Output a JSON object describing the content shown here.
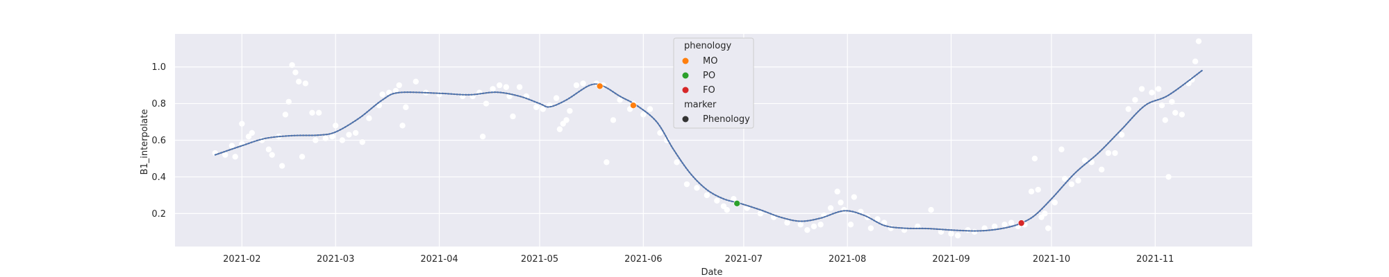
{
  "chart_data": {
    "type": "scatter",
    "title": "",
    "xlabel": "Date",
    "ylabel": "B1_interpolate",
    "x_ticks": [
      "2021-02",
      "2021-03",
      "2021-04",
      "2021-05",
      "2021-06",
      "2021-07",
      "2021-08",
      "2021-09",
      "2021-10",
      "2021-11"
    ],
    "y_ticks": [
      "0.2",
      "0.4",
      "0.6",
      "0.8",
      "1.0"
    ],
    "xlim": [
      "2021-01-12",
      "2021-11-30"
    ],
    "ylim": [
      0.02,
      1.18
    ],
    "grid": true,
    "background": "#eaeaf2",
    "series": [
      {
        "kind": "raw",
        "color": "#ffffff",
        "points": [
          [
            "2021-01-24",
            0.53
          ],
          [
            "2021-01-27",
            0.52
          ],
          [
            "2021-01-29",
            0.57
          ],
          [
            "2021-01-30",
            0.51
          ],
          [
            "2021-02-01",
            0.58
          ],
          [
            "2021-02-01",
            0.69
          ],
          [
            "2021-02-03",
            0.62
          ],
          [
            "2021-02-04",
            0.64
          ],
          [
            "2021-02-07",
            0.6
          ],
          [
            "2021-02-09",
            0.55
          ],
          [
            "2021-02-10",
            0.52
          ],
          [
            "2021-02-12",
            0.62
          ],
          [
            "2021-02-13",
            0.46
          ],
          [
            "2021-02-14",
            0.74
          ],
          [
            "2021-02-15",
            0.81
          ],
          [
            "2021-02-16",
            1.01
          ],
          [
            "2021-02-17",
            0.97
          ],
          [
            "2021-02-18",
            0.92
          ],
          [
            "2021-02-19",
            0.51
          ],
          [
            "2021-02-20",
            0.91
          ],
          [
            "2021-02-22",
            0.75
          ],
          [
            "2021-02-24",
            0.75
          ],
          [
            "2021-02-23",
            0.6
          ],
          [
            "2021-02-26",
            0.61
          ],
          [
            "2021-02-28",
            0.62
          ],
          [
            "2021-03-01",
            0.68
          ],
          [
            "2021-03-03",
            0.6
          ],
          [
            "2021-03-05",
            0.63
          ],
          [
            "2021-03-07",
            0.64
          ],
          [
            "2021-03-09",
            0.59
          ],
          [
            "2021-03-11",
            0.72
          ],
          [
            "2021-03-14",
            0.79
          ],
          [
            "2021-03-15",
            0.85
          ],
          [
            "2021-03-17",
            0.86
          ],
          [
            "2021-03-19",
            0.87
          ],
          [
            "2021-03-20",
            0.9
          ],
          [
            "2021-03-21",
            0.68
          ],
          [
            "2021-03-22",
            0.78
          ],
          [
            "2021-03-25",
            0.92
          ],
          [
            "2021-03-28",
            0.86
          ],
          [
            "2021-04-01",
            0.85
          ],
          [
            "2021-04-08",
            0.84
          ],
          [
            "2021-04-11",
            0.84
          ],
          [
            "2021-04-13",
            0.86
          ],
          [
            "2021-04-14",
            0.62
          ],
          [
            "2021-04-15",
            0.8
          ],
          [
            "2021-04-17",
            0.88
          ],
          [
            "2021-04-19",
            0.9
          ],
          [
            "2021-04-21",
            0.89
          ],
          [
            "2021-04-22",
            0.84
          ],
          [
            "2021-04-23",
            0.73
          ],
          [
            "2021-04-25",
            0.89
          ],
          [
            "2021-04-27",
            0.84
          ],
          [
            "2021-04-30",
            0.78
          ],
          [
            "2021-05-02",
            0.77
          ],
          [
            "2021-05-04",
            0.79
          ],
          [
            "2021-05-06",
            0.83
          ],
          [
            "2021-05-07",
            0.66
          ],
          [
            "2021-05-08",
            0.69
          ],
          [
            "2021-05-09",
            0.71
          ],
          [
            "2021-05-10",
            0.76
          ],
          [
            "2021-05-12",
            0.9
          ],
          [
            "2021-05-14",
            0.91
          ],
          [
            "2021-05-18",
            0.91
          ],
          [
            "2021-05-20",
            0.9
          ],
          [
            "2021-05-21",
            0.48
          ],
          [
            "2021-05-23",
            0.71
          ],
          [
            "2021-05-25",
            0.82
          ],
          [
            "2021-05-28",
            0.77
          ],
          [
            "2021-05-29",
            0.8
          ],
          [
            "2021-06-01",
            0.74
          ],
          [
            "2021-06-03",
            0.77
          ],
          [
            "2021-06-06",
            0.64
          ],
          [
            "2021-06-08",
            0.6
          ],
          [
            "2021-06-11",
            0.48
          ],
          [
            "2021-06-14",
            0.36
          ],
          [
            "2021-06-17",
            0.34
          ],
          [
            "2021-06-20",
            0.3
          ],
          [
            "2021-06-23",
            0.27
          ],
          [
            "2021-06-25",
            0.24
          ],
          [
            "2021-06-26",
            0.22
          ],
          [
            "2021-06-28",
            0.28
          ],
          [
            "2021-07-02",
            0.23
          ],
          [
            "2021-07-06",
            0.2
          ],
          [
            "2021-07-10",
            0.18
          ],
          [
            "2021-07-14",
            0.15
          ],
          [
            "2021-07-18",
            0.14
          ],
          [
            "2021-07-20",
            0.11
          ],
          [
            "2021-07-22",
            0.13
          ],
          [
            "2021-07-24",
            0.14
          ],
          [
            "2021-07-25",
            0.19
          ],
          [
            "2021-07-27",
            0.23
          ],
          [
            "2021-07-29",
            0.32
          ],
          [
            "2021-07-30",
            0.26
          ],
          [
            "2021-07-31",
            0.22
          ],
          [
            "2021-08-02",
            0.14
          ],
          [
            "2021-08-03",
            0.29
          ],
          [
            "2021-08-05",
            0.21
          ],
          [
            "2021-08-07",
            0.18
          ],
          [
            "2021-08-08",
            0.12
          ],
          [
            "2021-08-10",
            0.17
          ],
          [
            "2021-08-12",
            0.15
          ],
          [
            "2021-08-14",
            0.12
          ],
          [
            "2021-08-18",
            0.11
          ],
          [
            "2021-08-22",
            0.13
          ],
          [
            "2021-08-26",
            0.22
          ],
          [
            "2021-08-29",
            0.1
          ],
          [
            "2021-09-01",
            0.09
          ],
          [
            "2021-09-03",
            0.08
          ],
          [
            "2021-09-06",
            0.11
          ],
          [
            "2021-09-08",
            0.1
          ],
          [
            "2021-09-11",
            0.12
          ],
          [
            "2021-09-14",
            0.13
          ],
          [
            "2021-09-17",
            0.14
          ],
          [
            "2021-09-19",
            0.15
          ],
          [
            "2021-09-21",
            0.13
          ],
          [
            "2021-09-23",
            0.14
          ],
          [
            "2021-09-25",
            0.32
          ],
          [
            "2021-09-26",
            0.5
          ],
          [
            "2021-09-27",
            0.33
          ],
          [
            "2021-09-28",
            0.18
          ],
          [
            "2021-09-29",
            0.2
          ],
          [
            "2021-09-30",
            0.12
          ],
          [
            "2021-10-02",
            0.26
          ],
          [
            "2021-10-04",
            0.55
          ],
          [
            "2021-10-05",
            0.39
          ],
          [
            "2021-10-07",
            0.36
          ],
          [
            "2021-10-09",
            0.38
          ],
          [
            "2021-10-11",
            0.49
          ],
          [
            "2021-10-13",
            0.48
          ],
          [
            "2021-10-16",
            0.44
          ],
          [
            "2021-10-18",
            0.53
          ],
          [
            "2021-10-20",
            0.53
          ],
          [
            "2021-10-22",
            0.63
          ],
          [
            "2021-10-24",
            0.77
          ],
          [
            "2021-10-26",
            0.82
          ],
          [
            "2021-10-28",
            0.88
          ],
          [
            "2021-10-31",
            0.86
          ],
          [
            "2021-11-02",
            0.88
          ],
          [
            "2021-11-03",
            0.79
          ],
          [
            "2021-11-04",
            0.71
          ],
          [
            "2021-11-05",
            0.4
          ],
          [
            "2021-11-06",
            0.81
          ],
          [
            "2021-11-07",
            0.75
          ],
          [
            "2021-11-09",
            0.74
          ],
          [
            "2021-11-11",
            0.91
          ],
          [
            "2021-11-12",
            0.93
          ],
          [
            "2021-11-13",
            1.03
          ],
          [
            "2021-11-14",
            1.14
          ]
        ]
      },
      {
        "kind": "interpolated",
        "color": "#4c72b0",
        "points": [
          [
            "2021-01-24",
            0.52
          ],
          [
            "2021-02-01",
            0.57
          ],
          [
            "2021-02-08",
            0.61
          ],
          [
            "2021-02-16",
            0.625
          ],
          [
            "2021-02-24",
            0.628
          ],
          [
            "2021-03-01",
            0.645
          ],
          [
            "2021-03-08",
            0.72
          ],
          [
            "2021-03-15",
            0.82
          ],
          [
            "2021-03-20",
            0.86
          ],
          [
            "2021-04-01",
            0.856
          ],
          [
            "2021-04-10",
            0.848
          ],
          [
            "2021-04-18",
            0.862
          ],
          [
            "2021-04-25",
            0.84
          ],
          [
            "2021-05-01",
            0.8
          ],
          [
            "2021-05-04",
            0.782
          ],
          [
            "2021-05-09",
            0.82
          ],
          [
            "2021-05-16",
            0.9
          ],
          [
            "2021-05-20",
            0.895
          ],
          [
            "2021-05-25",
            0.84
          ],
          [
            "2021-05-30",
            0.79
          ],
          [
            "2021-06-05",
            0.7
          ],
          [
            "2021-06-10",
            0.55
          ],
          [
            "2021-06-15",
            0.42
          ],
          [
            "2021-06-20",
            0.33
          ],
          [
            "2021-06-25",
            0.28
          ],
          [
            "2021-06-30",
            0.255
          ],
          [
            "2021-07-06",
            0.22
          ],
          [
            "2021-07-12",
            0.18
          ],
          [
            "2021-07-18",
            0.158
          ],
          [
            "2021-07-24",
            0.175
          ],
          [
            "2021-07-31",
            0.215
          ],
          [
            "2021-08-06",
            0.19
          ],
          [
            "2021-08-12",
            0.135
          ],
          [
            "2021-08-18",
            0.12
          ],
          [
            "2021-08-25",
            0.118
          ],
          [
            "2021-09-01",
            0.11
          ],
          [
            "2021-09-08",
            0.105
          ],
          [
            "2021-09-13",
            0.11
          ],
          [
            "2021-09-18",
            0.125
          ],
          [
            "2021-09-22",
            0.148
          ],
          [
            "2021-09-26",
            0.19
          ],
          [
            "2021-10-01",
            0.28
          ],
          [
            "2021-10-08",
            0.42
          ],
          [
            "2021-10-15",
            0.53
          ],
          [
            "2021-10-22",
            0.66
          ],
          [
            "2021-10-29",
            0.79
          ],
          [
            "2021-11-05",
            0.846
          ],
          [
            "2021-11-15",
            0.98
          ]
        ]
      },
      {
        "kind": "phenology",
        "points": [
          [
            "2021-05-19",
            0.895,
            "MO"
          ],
          [
            "2021-05-29",
            0.79,
            "MO"
          ],
          [
            "2021-06-29",
            0.255,
            "PO"
          ],
          [
            "2021-09-22",
            0.148,
            "FO"
          ]
        ]
      }
    ],
    "legend": {
      "placement": "top-center",
      "title": "phenology",
      "items": [
        {
          "label": "MO",
          "color": "#ff7f0e"
        },
        {
          "label": "PO",
          "color": "#2ca02c"
        },
        {
          "label": "FO",
          "color": "#d62728"
        }
      ],
      "marker_title": "marker",
      "marker_items": [
        {
          "label": "Phenology",
          "color": "#333333"
        }
      ]
    }
  }
}
